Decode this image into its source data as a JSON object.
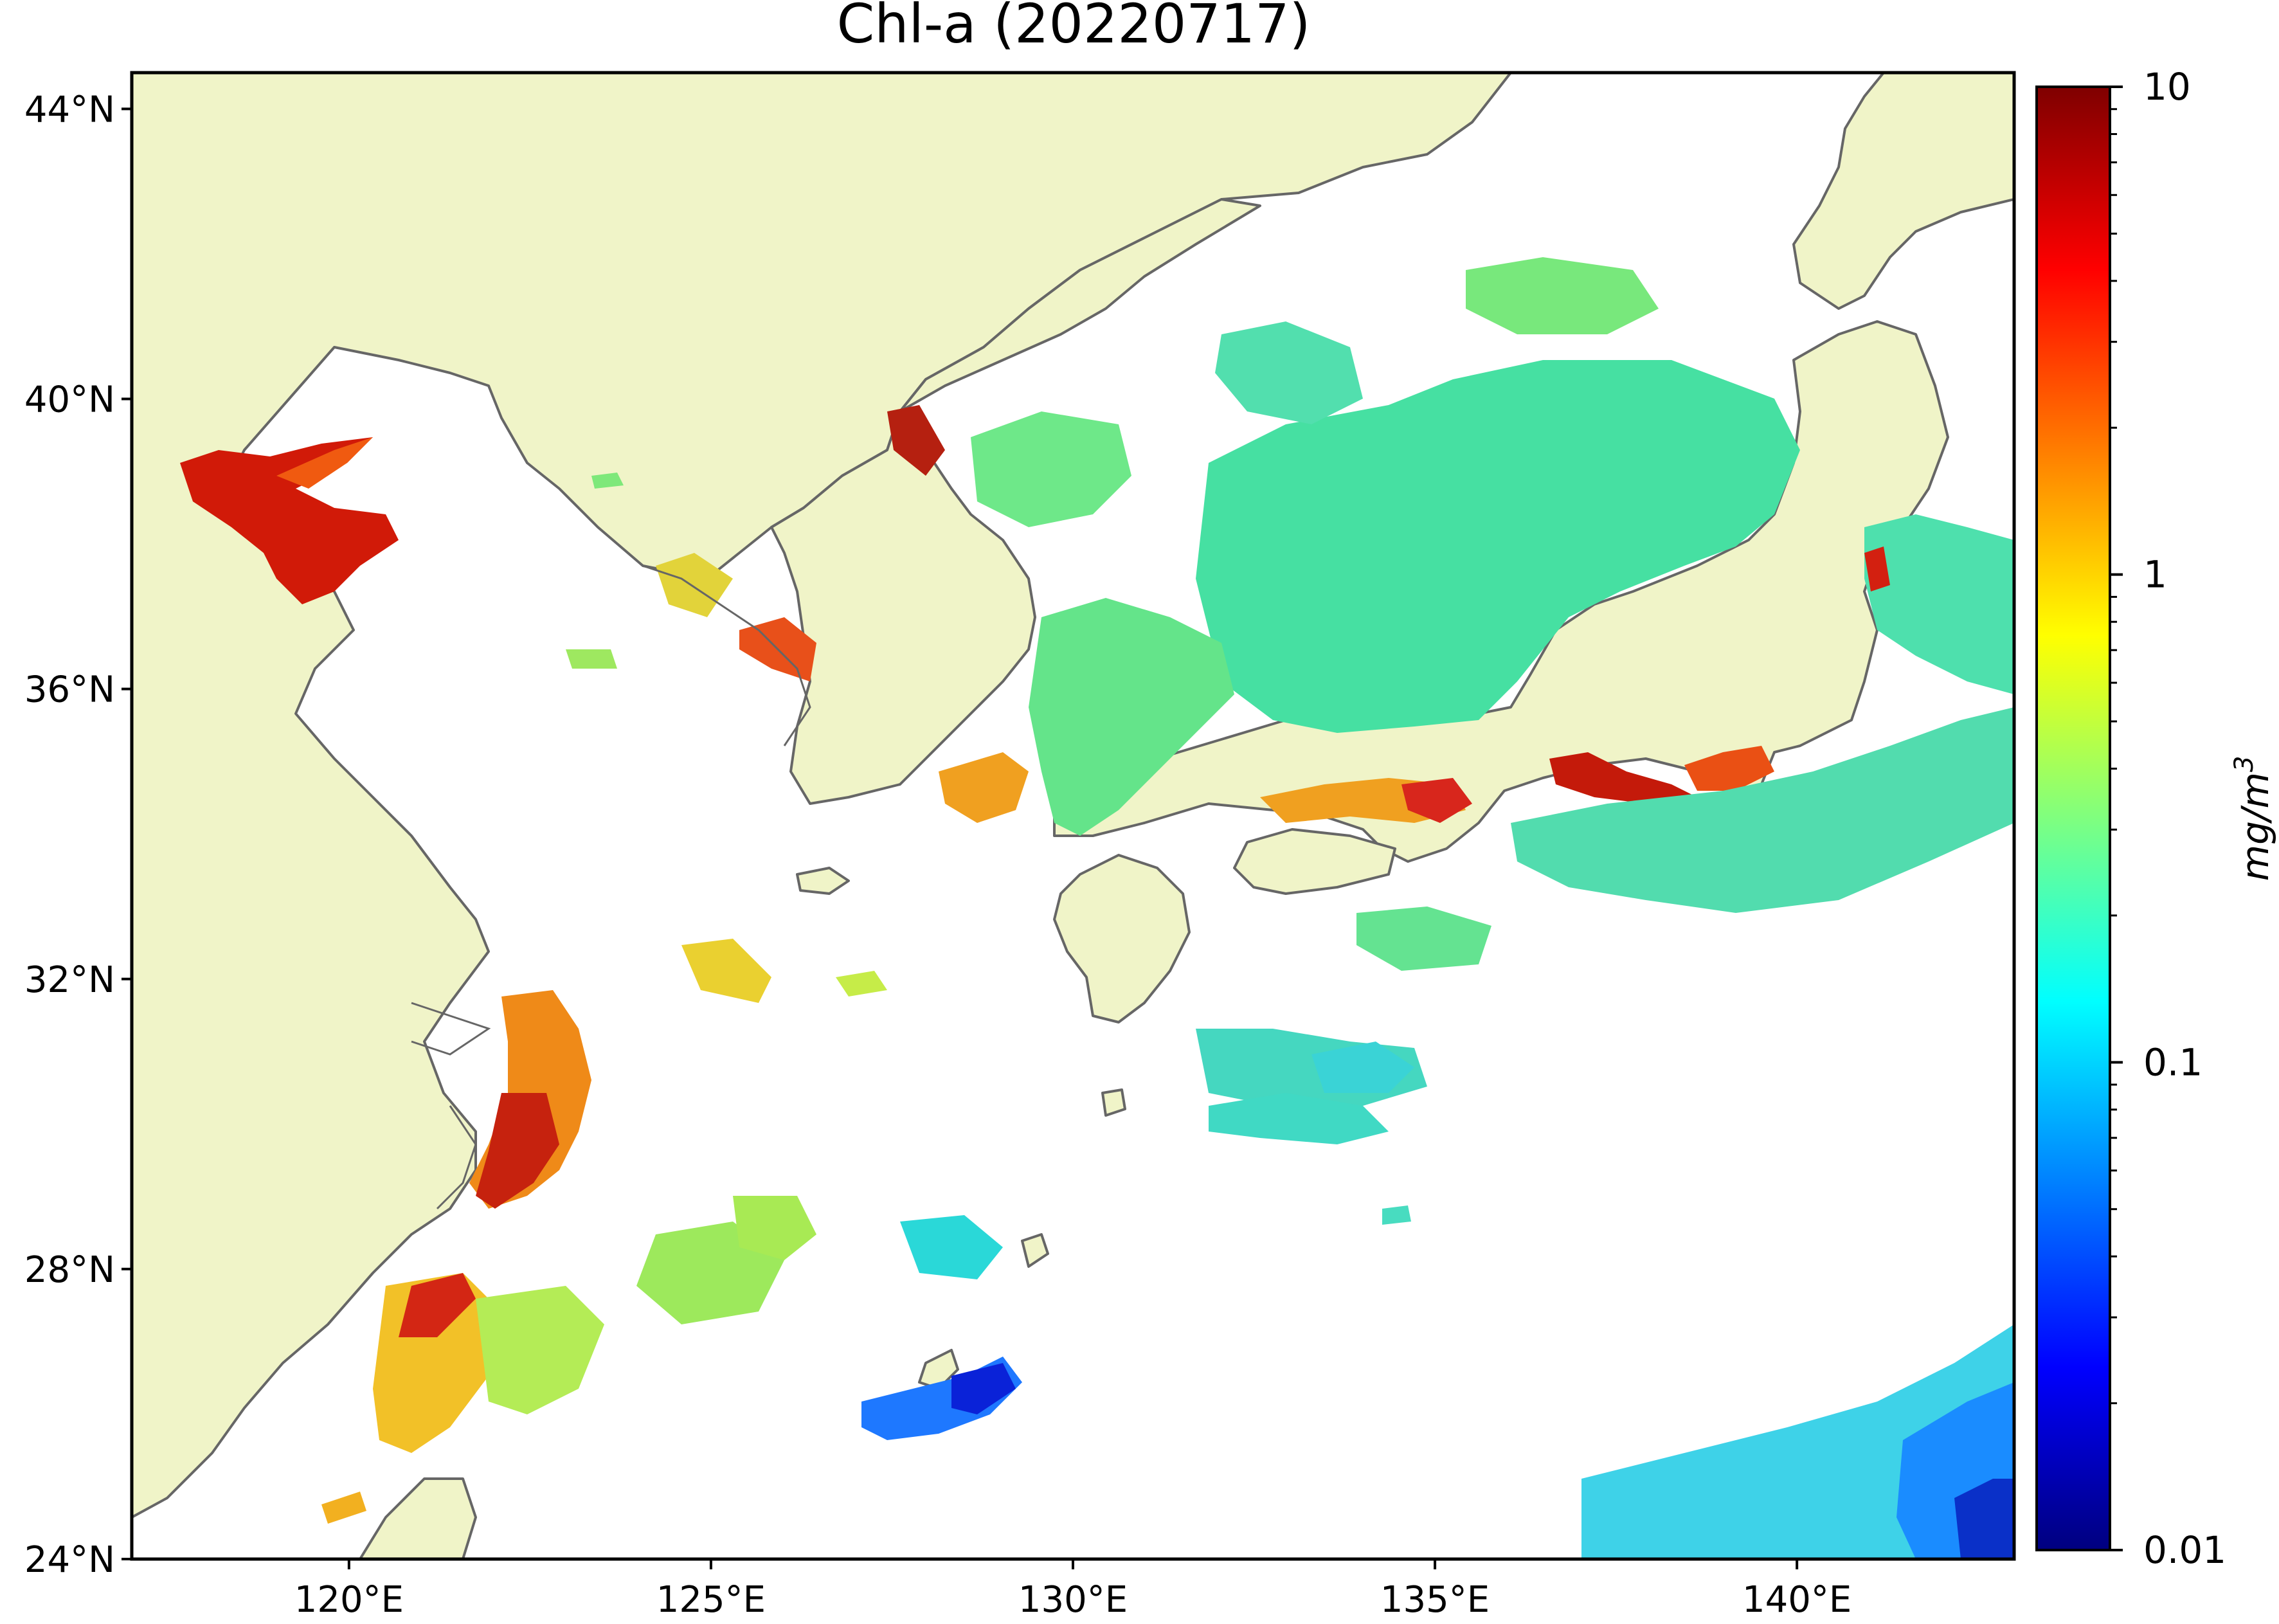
{
  "title": "Chl-a (20220717)",
  "map": {
    "lon_range": [
      117,
      143
    ],
    "lat_range": [
      24,
      44.5
    ],
    "x_ticks": [
      {
        "value": 120,
        "label": "120°E"
      },
      {
        "value": 125,
        "label": "125°E"
      },
      {
        "value": 130,
        "label": "130°E"
      },
      {
        "value": 135,
        "label": "135°E"
      },
      {
        "value": 140,
        "label": "140°E"
      }
    ],
    "y_ticks": [
      {
        "value": 24,
        "label": "24°N"
      },
      {
        "value": 28,
        "label": "28°N"
      },
      {
        "value": 32,
        "label": "32°N"
      },
      {
        "value": 36,
        "label": "36°N"
      },
      {
        "value": 40,
        "label": "40°N"
      },
      {
        "value": 44,
        "label": "44°N"
      }
    ],
    "colors": {
      "land": "#f0f4c8",
      "coast": "#666666",
      "missing": "#ffffff"
    }
  },
  "colorbar": {
    "label_text": "mg/m",
    "label_exp": "3",
    "scale": "log",
    "range": [
      0.01,
      10
    ],
    "ticks": [
      {
        "value": 10,
        "label": "10"
      },
      {
        "value": 1,
        "label": "1"
      },
      {
        "value": 0.1,
        "label": "0.1"
      },
      {
        "value": 0.01,
        "label": "0.01"
      }
    ],
    "colormap": [
      "#00007f",
      "#0000ff",
      "#007fff",
      "#00ffff",
      "#7fff7f",
      "#ffff00",
      "#ff7f00",
      "#ff0000",
      "#7f0000"
    ]
  }
}
